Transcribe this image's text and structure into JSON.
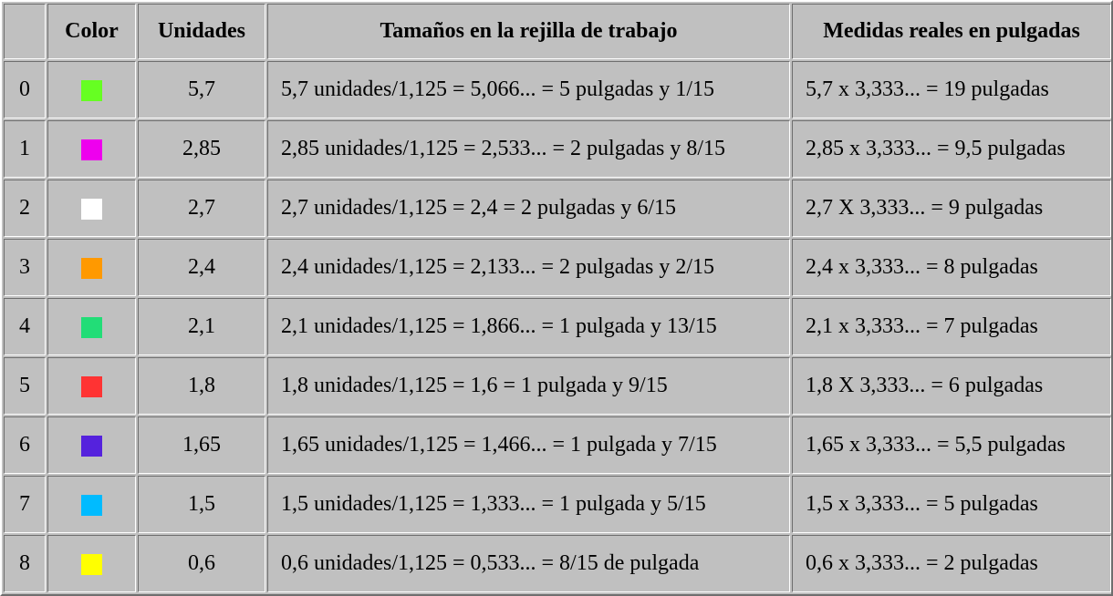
{
  "headers": {
    "index": "",
    "color": "Color",
    "units": "Unidades",
    "grid": "Tamaños en la rejilla de trabajo",
    "real": "Medidas reales en pulgadas"
  },
  "rows": [
    {
      "index": "0",
      "color": "#66ff22",
      "units": "5,7",
      "grid": "5,7 unidades/1,125 = 5,066... = 5 pulgadas y 1/15",
      "real": "5,7 x 3,333... = 19 pulgadas"
    },
    {
      "index": "1",
      "color": "#ee00ee",
      "units": "2,85",
      "grid": "2,85 unidades/1,125 = 2,533... = 2 pulgadas y 8/15",
      "real": "2,85 x 3,333... = 9,5 pulgadas"
    },
    {
      "index": "2",
      "color": "#ffffff",
      "units": "2,7",
      "grid": "2,7 unidades/1,125 = 2,4 = 2 pulgadas y 6/15",
      "real": "2,7 X 3,333... = 9 pulgadas"
    },
    {
      "index": "3",
      "color": "#ff9900",
      "units": "2,4",
      "grid": "2,4 unidades/1,125 = 2,133... = 2 pulgadas y 2/15",
      "real": "2,4 x 3,333... = 8 pulgadas"
    },
    {
      "index": "4",
      "color": "#22dd77",
      "units": "2,1",
      "grid": "2,1 unidades/1,125 = 1,866... = 1 pulgada y 13/15",
      "real": "2,1 x 3,333... = 7 pulgadas"
    },
    {
      "index": "5",
      "color": "#ff3333",
      "units": "1,8",
      "grid": "1,8 unidades/1,125 = 1,6 = 1 pulgada y 9/15",
      "real": "1,8 X 3,333... = 6 pulgadas"
    },
    {
      "index": "6",
      "color": "#5522dd",
      "units": "1,65",
      "grid": "1,65 unidades/1,125 = 1,466... = 1 pulgada y 7/15",
      "real": "1,65 x 3,333... = 5,5 pulgadas"
    },
    {
      "index": "7",
      "color": "#00bbff",
      "units": "1,5",
      "grid": "1,5 unidades/1,125 = 1,333... = 1 pulgada y 5/15",
      "real": "1,5 x 3,333... = 5 pulgadas"
    },
    {
      "index": "8",
      "color": "#ffff00",
      "units": "0,6",
      "grid": "0,6 unidades/1,125 = 0,533... = 8/15 de pulgada",
      "real": "0,6 x 3,333... = 2 pulgadas"
    }
  ]
}
